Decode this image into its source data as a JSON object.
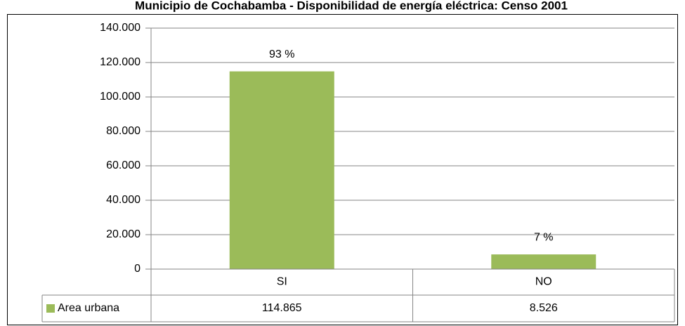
{
  "chart_data": {
    "type": "bar",
    "title": "Municipio de Cochabamba - Disponibilidad de energía eléctrica: Censo 2001",
    "categories": [
      "SI",
      "NO"
    ],
    "series": [
      {
        "name": "Area urbana",
        "color": "#9bbb59",
        "values": [
          114865,
          8526
        ],
        "value_labels": [
          "114.865",
          "8.526"
        ]
      }
    ],
    "data_labels": [
      "93 %",
      "7 %"
    ],
    "ylim": [
      0,
      140000
    ],
    "yticks": [
      0,
      {
        "value": 20000,
        "label": "20.000"
      },
      {
        "value": 40000,
        "label": "40.000"
      },
      {
        "value": 60000,
        "label": "60.000"
      },
      {
        "value": 80000,
        "label": "80.000"
      },
      {
        "value": 100000,
        "label": "100.000"
      },
      {
        "value": 120000,
        "label": "120.000"
      },
      {
        "value": 140000,
        "label": "140.000"
      }
    ],
    "grid": true,
    "data_table": true
  }
}
